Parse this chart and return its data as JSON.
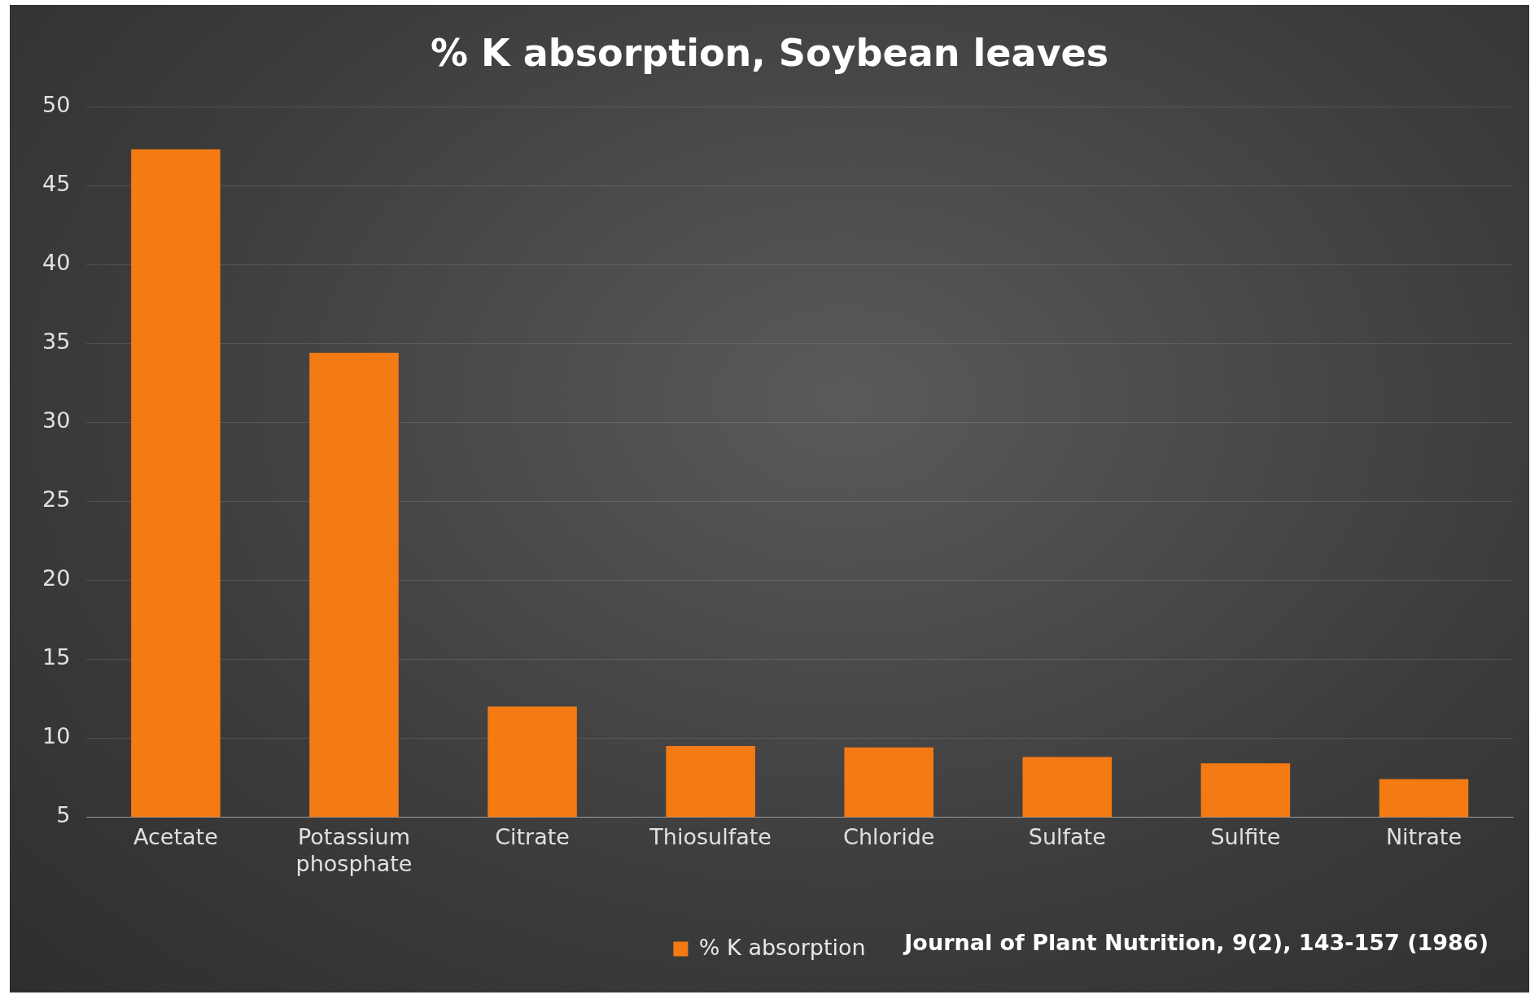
{
  "chart_data": {
    "type": "bar",
    "title": "% K absorption, Soybean leaves",
    "categories": [
      "Acetate",
      "Potassium phosphate",
      "Citrate",
      "Thiosulfate",
      "Chloride",
      "Sulfate",
      "Sulfite",
      "Nitrate"
    ],
    "series": [
      {
        "name": "% K absorption",
        "color": "#f47a14",
        "values": [
          47.3,
          34.4,
          12.0,
          9.5,
          9.4,
          8.8,
          8.4,
          7.4
        ]
      }
    ],
    "ylim": [
      5,
      50
    ],
    "yticks": [
      5,
      10,
      15,
      20,
      25,
      30,
      35,
      40,
      45,
      50
    ],
    "grid": "y",
    "legend": "bottom",
    "annotations": [
      "Journal of Plant Nutrition, 9(2), 143-157 (1986)"
    ]
  }
}
